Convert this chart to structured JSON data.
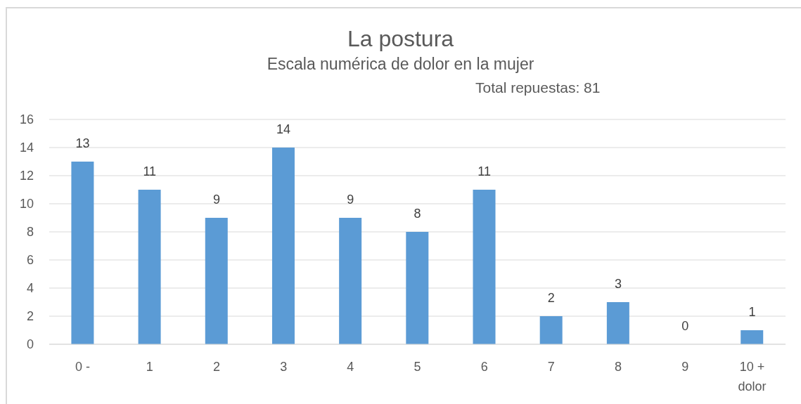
{
  "chart_data": {
    "type": "bar",
    "title": "La postura",
    "subtitle": "Escala numérica de dolor en la mujer",
    "annotations": [
      "Total repuestas: 81"
    ],
    "categories": [
      "0 -",
      "1",
      "2",
      "3",
      "4",
      "5",
      "6",
      "7",
      "8",
      "9",
      "10 + dolor"
    ],
    "values": [
      13,
      11,
      9,
      14,
      9,
      8,
      11,
      2,
      3,
      0,
      1
    ],
    "color": "#5b9bd5",
    "ylim": [
      0,
      16
    ],
    "yticks": [
      0,
      2,
      4,
      6,
      8,
      10,
      12,
      14,
      16
    ],
    "grid": "y",
    "data_labels": true
  }
}
